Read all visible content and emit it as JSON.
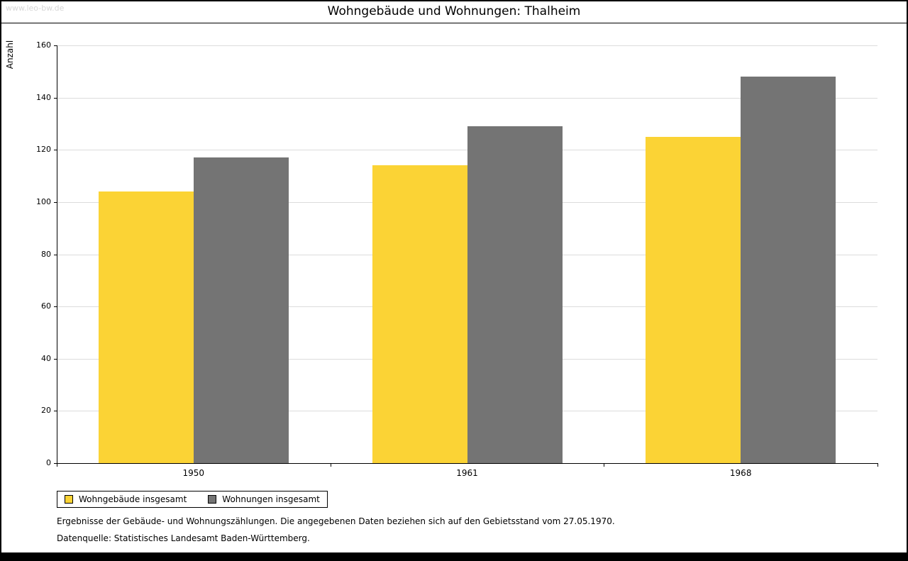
{
  "page": {
    "watermark": "www.leo-bw.de",
    "footnote1": "Ergebnisse der Gebäude- und Wohnungszählungen. Die angegebenen Daten beziehen sich auf den Gebietsstand vom 27.05.1970.",
    "footnote2": "Datenquelle: Statistisches Landesamt Baden-Württemberg."
  },
  "chart_data": {
    "type": "bar",
    "title": "Wohngebäude und Wohnungen: Thalheim",
    "ylabel": "Anzahl",
    "xlabel": "",
    "categories": [
      "1950",
      "1961",
      "1968"
    ],
    "series": [
      {
        "name": "Wohngebäude insgesamt",
        "color": "#FBD335",
        "values": [
          104,
          114,
          125
        ]
      },
      {
        "name": "Wohnungen insgesamt",
        "color": "#747474",
        "values": [
          117,
          129,
          148
        ]
      }
    ],
    "ylim": [
      0,
      160
    ],
    "ytick_step": 20,
    "grid": true,
    "legend_position": "bottom-left",
    "colors": {
      "grid": "#dcdcdc",
      "axis": "#000000"
    }
  }
}
